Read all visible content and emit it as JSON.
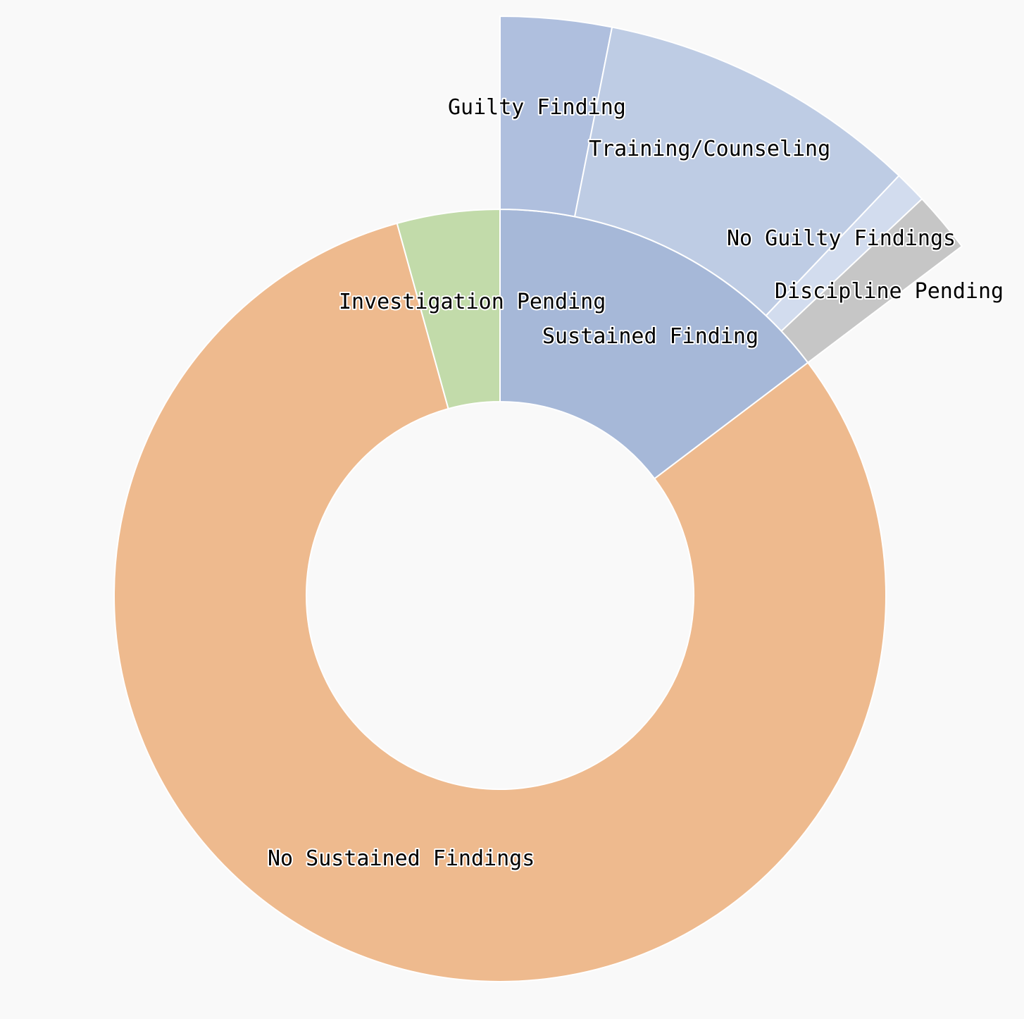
{
  "chart_data": {
    "type": "sunburst",
    "title": "",
    "root": {
      "name": "",
      "children": [
        {
          "name": "Sustained Finding",
          "value": 14.7,
          "color": "#a6b8d8",
          "children": [
            {
              "name": "Guilty Finding",
              "value": 3.1,
              "color": "#afbfde"
            },
            {
              "name": "Training/Counseling",
              "value": 9.0,
              "color": "#becce4"
            },
            {
              "name": "No Guilty Findings",
              "value": 0.9,
              "color": "#d2dcee"
            },
            {
              "name": "Discipline Pending",
              "value": 1.7,
              "color": "#c6c6c6"
            }
          ]
        },
        {
          "name": "No Sustained Findings",
          "value": 81.0,
          "color": "#eeba8e",
          "children": []
        },
        {
          "name": "Investigation Pending",
          "value": 4.3,
          "color": "#c2dbaa",
          "children": []
        }
      ]
    },
    "start_angle_deg": 0,
    "direction": "clockwise"
  }
}
